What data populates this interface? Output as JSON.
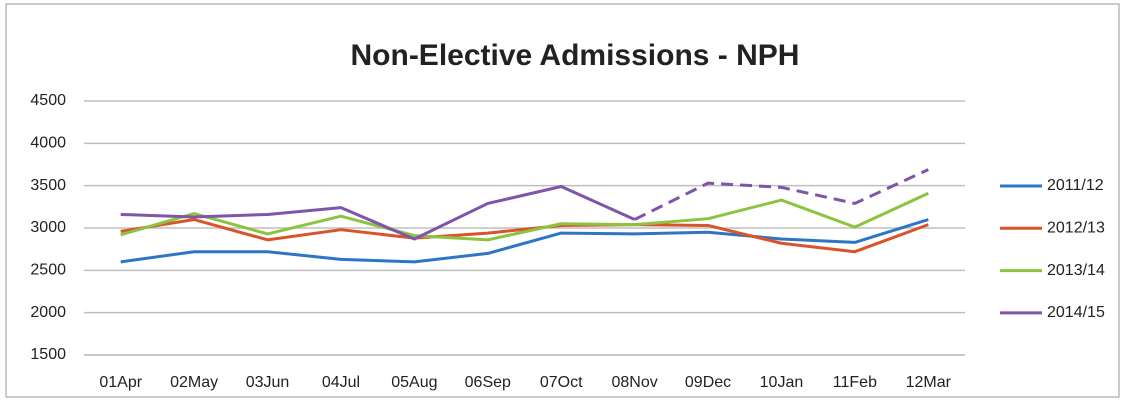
{
  "chart_data": {
    "type": "line",
    "title": "Non-Elective Admissions - NPH",
    "categories": [
      "01Apr",
      "02May",
      "03Jun",
      "04Jul",
      "05Aug",
      "06Sep",
      "07Oct",
      "08Nov",
      "09Dec",
      "10Jan",
      "11Feb",
      "12Mar"
    ],
    "series": [
      {
        "name": "2011/12",
        "color": "#2e75c6",
        "values": [
          2600,
          2720,
          2720,
          2630,
          2600,
          2700,
          2940,
          2930,
          2950,
          2870,
          2830,
          3100
        ]
      },
      {
        "name": "2012/13",
        "color": "#d9532c",
        "values": [
          2960,
          3100,
          2860,
          2980,
          2880,
          2940,
          3030,
          3040,
          3030,
          2820,
          2720,
          3040
        ]
      },
      {
        "name": "2013/14",
        "color": "#8cc43f",
        "values": [
          2920,
          3170,
          2930,
          3140,
          2910,
          2860,
          3050,
          3040,
          3110,
          3330,
          3010,
          3410
        ]
      },
      {
        "name": "2014/15",
        "color": "#7e55a8",
        "values": [
          3160,
          3130,
          3160,
          3240,
          2870,
          3290,
          3490,
          3100,
          3530,
          3480,
          3290,
          3690
        ],
        "dashed_from": "08Nov"
      }
    ],
    "ylim": [
      1500,
      4500
    ],
    "yticks": [
      1500,
      2000,
      2500,
      3000,
      3500,
      4000,
      4500
    ],
    "grid": true,
    "legend": "right"
  }
}
